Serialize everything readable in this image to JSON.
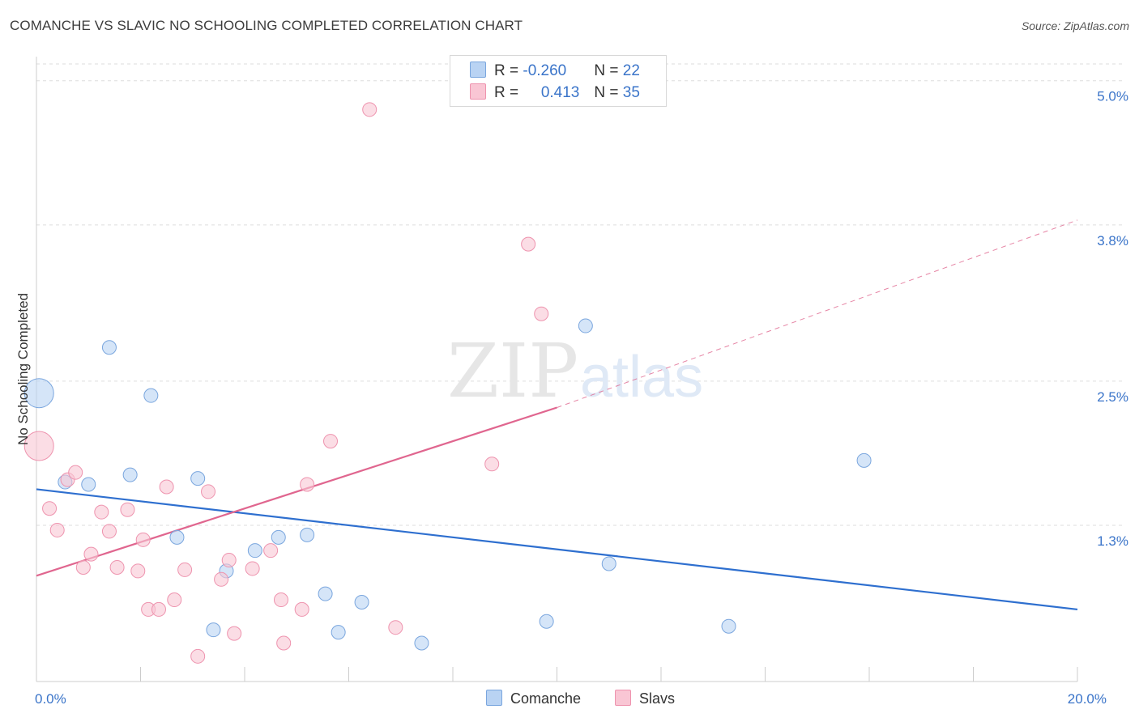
{
  "title": "COMANCHE VS SLAVIC NO SCHOOLING COMPLETED CORRELATION CHART",
  "source": "Source: ZipAtlas.com",
  "watermark": {
    "zip": "ZIP",
    "atlas": "atlas"
  },
  "legend": {
    "comanche": {
      "r_label": "R = ",
      "r_value": "-0.260",
      "n_label": "N = ",
      "n_value": "22"
    },
    "slavs": {
      "r_label": "R = ",
      "r_value": "0.413",
      "n_label": "N = ",
      "n_value": "35"
    }
  },
  "colors": {
    "comanche_fill": "#b9d3f3",
    "comanche_stroke": "#7aa6de",
    "comanche_line": "#2e6fcf",
    "slavs_fill": "#f9c6d4",
    "slavs_stroke": "#ee93ae",
    "slavs_line": "#e0668f",
    "axis_label": "#3a74c9",
    "grid": "#dddddd"
  },
  "chart_data": {
    "type": "scatter",
    "title": "COMANCHE VS SLAVIC NO SCHOOLING COMPLETED CORRELATION CHART",
    "xlabel": "",
    "ylabel": "No Schooling Completed",
    "xlim": [
      0,
      20
    ],
    "ylim": [
      0,
      5.2
    ],
    "x_tick_labels": [
      {
        "value": 0,
        "label": "0.0%"
      },
      {
        "value": 20,
        "label": "20.0%"
      }
    ],
    "y_tick_labels": [
      {
        "value": 1.3,
        "label": "1.3%"
      },
      {
        "value": 2.5,
        "label": "2.5%"
      },
      {
        "value": 3.8,
        "label": "3.8%"
      },
      {
        "value": 5.0,
        "label": "5.0%"
      }
    ],
    "grid": true,
    "legend_position": "top-center",
    "series": [
      {
        "name": "Comanche",
        "points": [
          {
            "x": 0.05,
            "y": 2.4,
            "size": "large"
          },
          {
            "x": 1.4,
            "y": 2.78
          },
          {
            "x": 2.2,
            "y": 2.38
          },
          {
            "x": 0.55,
            "y": 1.66
          },
          {
            "x": 1.0,
            "y": 1.64
          },
          {
            "x": 1.8,
            "y": 1.72
          },
          {
            "x": 3.1,
            "y": 1.69
          },
          {
            "x": 2.7,
            "y": 1.2
          },
          {
            "x": 3.65,
            "y": 0.92
          },
          {
            "x": 4.2,
            "y": 1.09
          },
          {
            "x": 4.65,
            "y": 1.2
          },
          {
            "x": 5.2,
            "y": 1.22
          },
          {
            "x": 5.55,
            "y": 0.73
          },
          {
            "x": 6.25,
            "y": 0.66
          },
          {
            "x": 3.4,
            "y": 0.43
          },
          {
            "x": 5.8,
            "y": 0.41
          },
          {
            "x": 7.4,
            "y": 0.32
          },
          {
            "x": 9.8,
            "y": 0.5
          },
          {
            "x": 10.55,
            "y": 2.96
          },
          {
            "x": 11.0,
            "y": 0.98
          },
          {
            "x": 13.3,
            "y": 0.46
          },
          {
            "x": 15.9,
            "y": 1.84
          }
        ],
        "trend": {
          "x": [
            0,
            20
          ],
          "y": [
            1.6,
            0.6
          ]
        }
      },
      {
        "name": "Slavs",
        "points": [
          {
            "x": 0.05,
            "y": 1.96,
            "size": "large"
          },
          {
            "x": 0.25,
            "y": 1.44
          },
          {
            "x": 0.4,
            "y": 1.26
          },
          {
            "x": 0.6,
            "y": 1.68
          },
          {
            "x": 0.75,
            "y": 1.74
          },
          {
            "x": 1.05,
            "y": 1.06
          },
          {
            "x": 1.25,
            "y": 1.41
          },
          {
            "x": 1.4,
            "y": 1.25
          },
          {
            "x": 0.9,
            "y": 0.95
          },
          {
            "x": 1.55,
            "y": 0.95
          },
          {
            "x": 1.75,
            "y": 1.43
          },
          {
            "x": 1.95,
            "y": 0.92
          },
          {
            "x": 2.05,
            "y": 1.18
          },
          {
            "x": 2.15,
            "y": 0.6
          },
          {
            "x": 2.35,
            "y": 0.6
          },
          {
            "x": 2.5,
            "y": 1.62
          },
          {
            "x": 2.65,
            "y": 0.68
          },
          {
            "x": 2.85,
            "y": 0.93
          },
          {
            "x": 3.3,
            "y": 1.58
          },
          {
            "x": 3.55,
            "y": 0.85
          },
          {
            "x": 3.7,
            "y": 1.01
          },
          {
            "x": 3.8,
            "y": 0.4
          },
          {
            "x": 4.15,
            "y": 0.94
          },
          {
            "x": 4.5,
            "y": 1.09
          },
          {
            "x": 4.7,
            "y": 0.68
          },
          {
            "x": 4.75,
            "y": 0.32
          },
          {
            "x": 5.1,
            "y": 0.6
          },
          {
            "x": 5.2,
            "y": 1.64
          },
          {
            "x": 3.1,
            "y": 0.21
          },
          {
            "x": 5.65,
            "y": 2.0
          },
          {
            "x": 6.4,
            "y": 4.76
          },
          {
            "x": 6.9,
            "y": 0.45
          },
          {
            "x": 8.75,
            "y": 1.81
          },
          {
            "x": 9.45,
            "y": 3.64
          },
          {
            "x": 9.7,
            "y": 3.06
          }
        ],
        "trend": {
          "x": [
            0,
            10
          ],
          "y": [
            0.88,
            2.28
          ]
        },
        "trend_extension": {
          "x": [
            10,
            20
          ],
          "y": [
            2.28,
            3.84
          ]
        }
      }
    ]
  }
}
